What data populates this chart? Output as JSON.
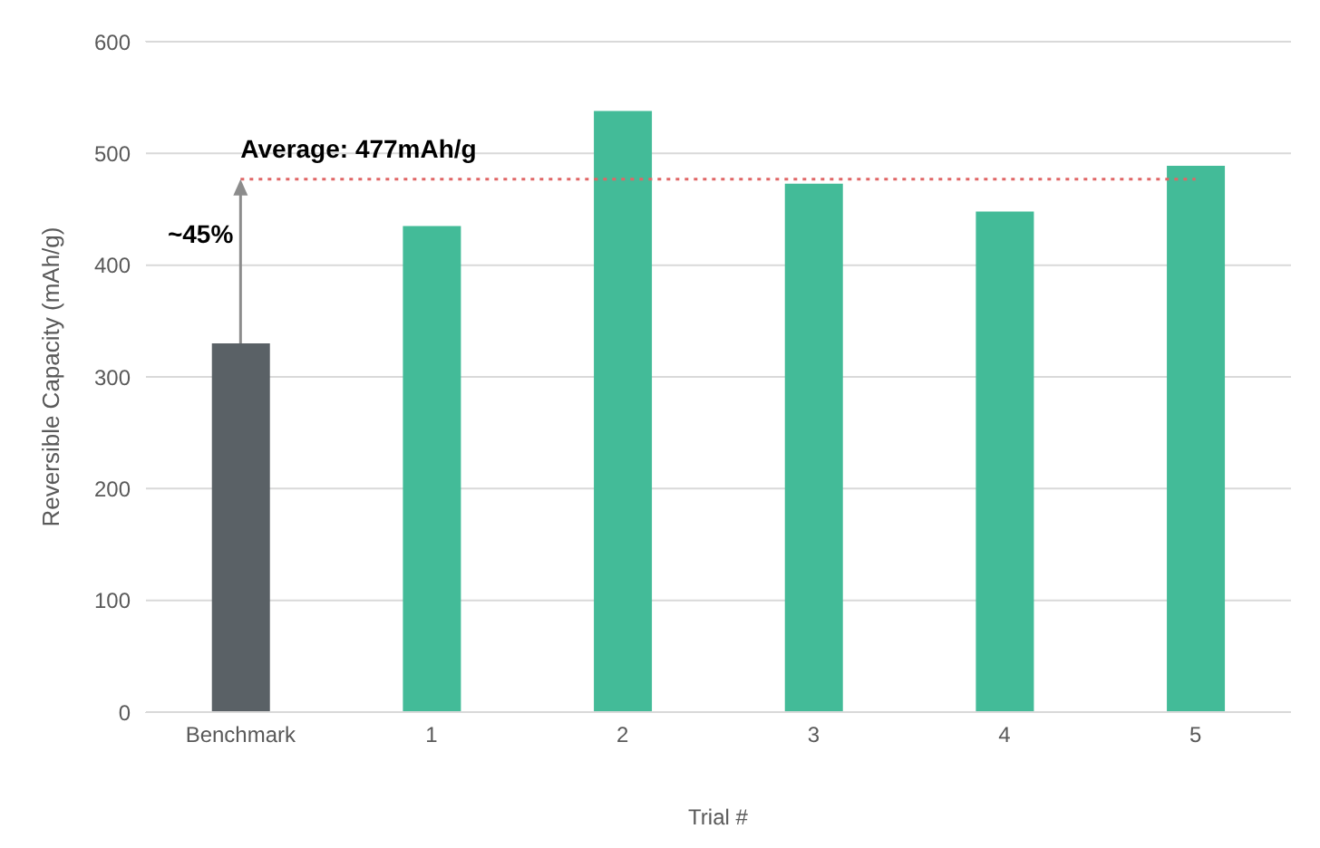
{
  "chart_data": {
    "type": "bar",
    "xlabel": "Trial #",
    "ylabel": "Reversible Capacity (mAh/g)",
    "categories": [
      "Benchmark",
      "1",
      "2",
      "3",
      "4",
      "5"
    ],
    "values": [
      330,
      435,
      538,
      473,
      448,
      489
    ],
    "colors": [
      "#5a6166",
      "#43bb98",
      "#43bb98",
      "#43bb98",
      "#43bb98",
      "#43bb98"
    ],
    "ylim": [
      0,
      600
    ],
    "yticks": [
      0,
      100,
      200,
      300,
      400,
      500,
      600
    ],
    "grid": "y",
    "ref_lines": [
      {
        "axis": "y",
        "value": 477,
        "label": "Average: 477mAh/g",
        "color": "#e06666",
        "line_style": "dotted"
      }
    ],
    "annotations": [
      {
        "text": "~45%",
        "x": "Benchmark",
        "y": 477
      }
    ]
  }
}
